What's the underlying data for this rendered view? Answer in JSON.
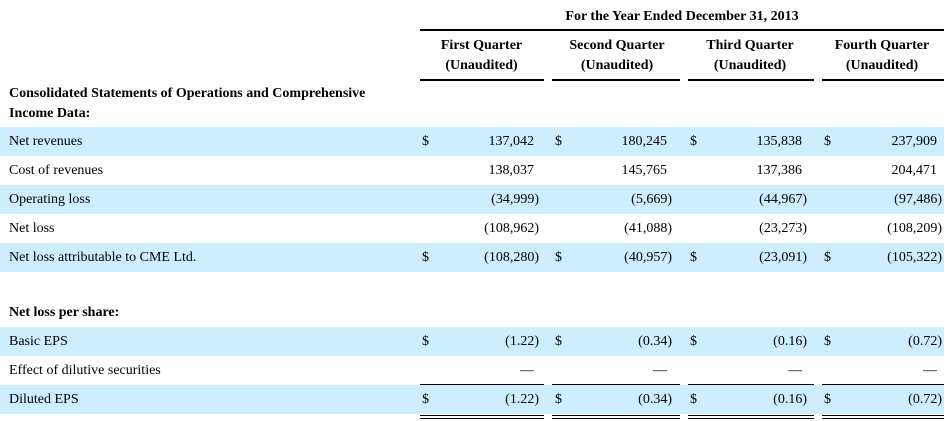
{
  "header": {
    "period_title": "For the Year Ended December 31, 2013",
    "columns": [
      {
        "line1": "First Quarter",
        "line2": "(Unaudited)"
      },
      {
        "line1": "Second Quarter",
        "line2": "(Unaudited)"
      },
      {
        "line1": "Third Quarter",
        "line2": "(Unaudited)"
      },
      {
        "line1": "Fourth Quarter",
        "line2": "(Unaudited)"
      }
    ]
  },
  "sections": {
    "operations_title_line1": "Consolidated Statements of Operations and Comprehensive",
    "operations_title_line2": "Income Data:",
    "per_share_title": "Net loss per share:"
  },
  "currency_symbol": "$",
  "operations_rows": [
    {
      "label": "Net revenues",
      "dollar": true,
      "values": [
        "137,042",
        "180,245",
        "135,838",
        "237,909"
      ]
    },
    {
      "label": "Cost of revenues",
      "dollar": false,
      "values": [
        "138,037",
        "145,765",
        "137,386",
        "204,471"
      ]
    },
    {
      "label": "Operating loss",
      "dollar": false,
      "values": [
        "(34,999)",
        "(5,669)",
        "(44,967)",
        "(97,486)"
      ]
    },
    {
      "label": "Net loss",
      "dollar": false,
      "values": [
        "(108,962)",
        "(41,088)",
        "(23,273)",
        "(108,209)"
      ]
    },
    {
      "label": "Net loss attributable to CME Ltd.",
      "dollar": true,
      "values": [
        "(108,280)",
        "(40,957)",
        "(23,091)",
        "(105,322)"
      ]
    }
  ],
  "per_share_rows": [
    {
      "label": "Basic EPS",
      "dollar": true,
      "values": [
        "(1.22)",
        "(0.34)",
        "(0.16)",
        "(0.72)"
      ]
    },
    {
      "label": "Effect of dilutive securities",
      "dollar": false,
      "values": [
        "—",
        "—",
        "—",
        "—"
      ]
    },
    {
      "label": "Diluted EPS",
      "dollar": true,
      "values": [
        "(1.22)",
        "(0.34)",
        "(0.16)",
        "(0.72)"
      ]
    }
  ]
}
